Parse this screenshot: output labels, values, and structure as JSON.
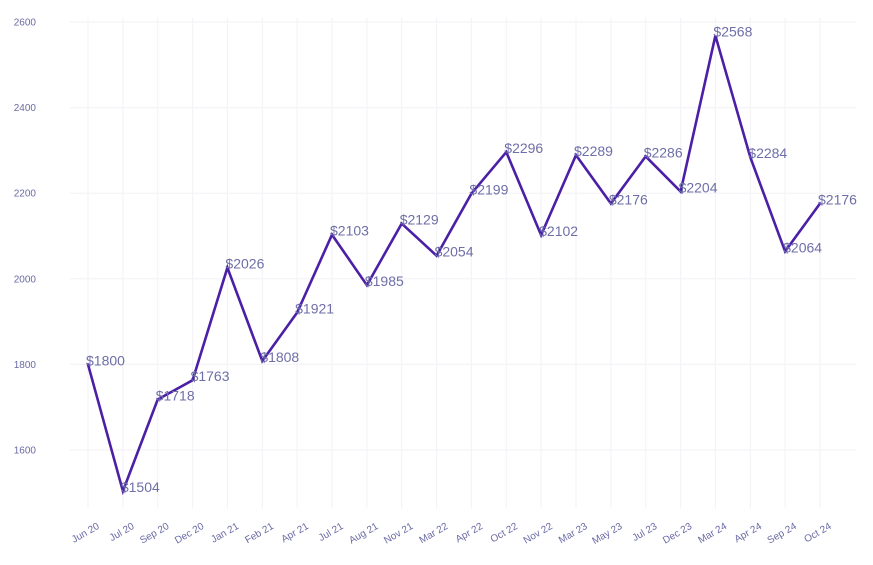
{
  "chart_data": {
    "type": "line",
    "title": "",
    "xlabel": "",
    "ylabel": "",
    "categories": [
      "Jun 20",
      "Jul 20",
      "Sep 20",
      "Dec 20",
      "Jan 21",
      "Feb 21",
      "Apr 21",
      "Jul 21",
      "Aug 21",
      "Nov 21",
      "Mar 22",
      "Apr 22",
      "Oct 22",
      "Nov 22",
      "Mar 23",
      "May 23",
      "Jul 23",
      "Dec 23",
      "Mar 24",
      "Apr 24",
      "Sep 24",
      "Oct 24"
    ],
    "series": [
      {
        "values": [
          1800,
          1504,
          1718,
          1763,
          2026,
          1808,
          1921,
          2103,
          1985,
          2129,
          2054,
          2199,
          2296,
          2102,
          2289,
          2176,
          2286,
          2204,
          2568,
          2284,
          2064,
          2176
        ],
        "color": "#4b1fa6"
      }
    ],
    "data_labels": [
      "$1800",
      "$1504",
      "$1718",
      "$1763",
      "$2026",
      "$1808",
      "$1921",
      "$2103",
      "$1985",
      "$2129",
      "$2054",
      "$2199",
      "$2296",
      "$2102",
      "$2289",
      "$2176",
      "$2286",
      "$2204",
      "$2568",
      "$2284",
      "$2064",
      "$2176"
    ],
    "y_ticks": [
      1600,
      1800,
      2000,
      2200,
      2400,
      2600
    ],
    "ylim": [
      1464,
      2610
    ],
    "grid": true,
    "legend": "none",
    "colors": {
      "line": "#4b1fa6",
      "tick_text": "#6a6aa5",
      "label_text": "#6e6ea8",
      "grid": "#f4f4f8"
    }
  }
}
